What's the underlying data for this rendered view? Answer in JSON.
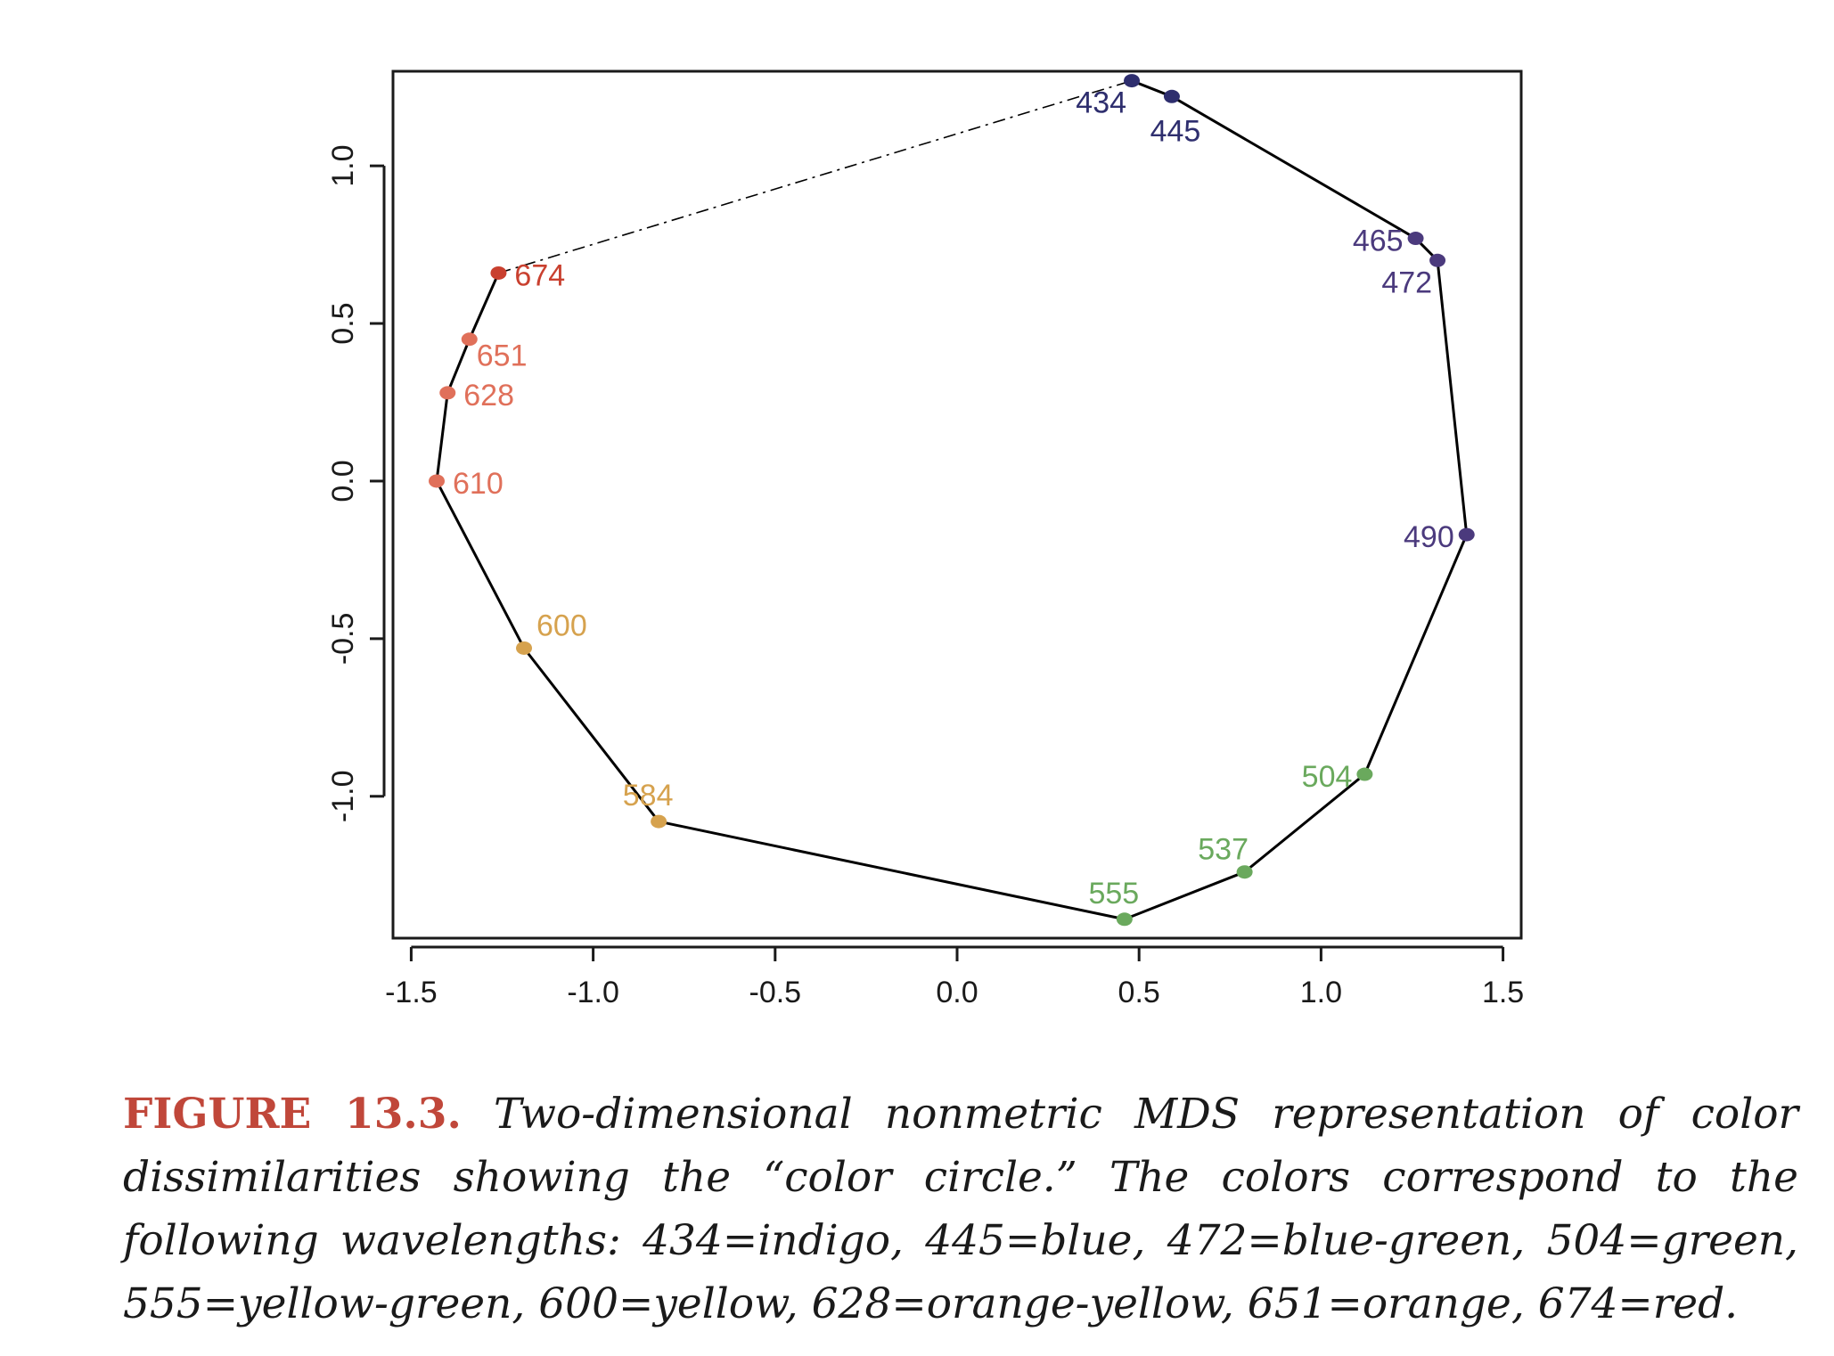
{
  "chart_data": {
    "type": "scatter",
    "xlim": [
      -1.55,
      1.55
    ],
    "ylim": [
      -1.45,
      1.3
    ],
    "x_ticks": [
      -1.5,
      -1.0,
      -0.5,
      0.0,
      0.5,
      1.0,
      1.5
    ],
    "x_tick_labels": [
      "-1.5",
      "-1.0",
      "-0.5",
      "0.0",
      "0.5",
      "1.0",
      "1.5"
    ],
    "y_ticks": [
      -1.0,
      -0.5,
      0.0,
      0.5,
      1.0
    ],
    "y_tick_labels": [
      "-1.0",
      "-0.5",
      "0.0",
      "0.5",
      "1.0"
    ],
    "xlabel": "",
    "ylabel": "",
    "grid": false,
    "points": [
      {
        "label": "434",
        "x": 0.48,
        "y": 1.27,
        "color": "#2e2e6e",
        "label_pos": "below-left"
      },
      {
        "label": "445",
        "x": 0.59,
        "y": 1.22,
        "color": "#2e2e6e",
        "label_pos": "below"
      },
      {
        "label": "465",
        "x": 1.26,
        "y": 0.77,
        "color": "#4b3a7d",
        "label_pos": "left"
      },
      {
        "label": "472",
        "x": 1.32,
        "y": 0.7,
        "color": "#4b3a7d",
        "label_pos": "below-left"
      },
      {
        "label": "490",
        "x": 1.4,
        "y": -0.17,
        "color": "#4b3a7d",
        "label_pos": "left"
      },
      {
        "label": "504",
        "x": 1.12,
        "y": -0.93,
        "color": "#6aa95d",
        "label_pos": "left"
      },
      {
        "label": "537",
        "x": 0.79,
        "y": -1.24,
        "color": "#6aa95d",
        "label_pos": "above-left"
      },
      {
        "label": "555",
        "x": 0.46,
        "y": -1.39,
        "color": "#6aa95d",
        "label_pos": "above"
      },
      {
        "label": "584",
        "x": -0.82,
        "y": -1.08,
        "color": "#d6a24e",
        "label_pos": "above"
      },
      {
        "label": "600",
        "x": -1.19,
        "y": -0.53,
        "color": "#d6a24e",
        "label_pos": "above-right"
      },
      {
        "label": "610",
        "x": -1.43,
        "y": 0.0,
        "color": "#e0705a",
        "label_pos": "right"
      },
      {
        "label": "628",
        "x": -1.4,
        "y": 0.28,
        "color": "#e0705a",
        "label_pos": "right"
      },
      {
        "label": "651",
        "x": -1.34,
        "y": 0.45,
        "color": "#e0705a",
        "label_pos": "below-right"
      },
      {
        "label": "674",
        "x": -1.26,
        "y": 0.66,
        "color": "#c9402f",
        "label_pos": "right"
      }
    ],
    "connection": {
      "solid_order": [
        "674",
        "651",
        "628",
        "610",
        "600",
        "584",
        "555",
        "537",
        "504",
        "490",
        "472",
        "465",
        "445",
        "434"
      ],
      "dashed_segment": [
        "674",
        "434"
      ]
    }
  },
  "caption": {
    "label": "FIGURE 13.3.",
    "text": "Two-dimensional nonmetric MDS representation of color dissimilarities showing the “color circle.” The colors correspond to the following wavelengths: 434=indigo, 445=blue, 472=blue-green, 504=green, 555=yellow-green, 600=yellow, 628=orange-yellow, 651=orange, 674=red."
  },
  "colors": {
    "axis": "#1a1a1a",
    "caption_label": "#c0473a",
    "line": "#000000"
  }
}
